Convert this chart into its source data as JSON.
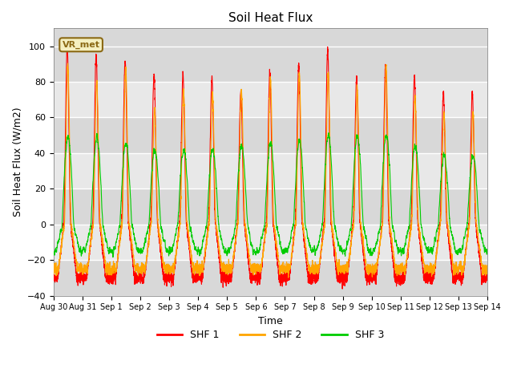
{
  "title": "Soil Heat Flux",
  "xlabel": "Time",
  "ylabel": "Soil Heat Flux (W/m2)",
  "ylim": [
    -40,
    110
  ],
  "yticks": [
    -40,
    -20,
    0,
    20,
    40,
    60,
    80,
    100
  ],
  "colors": {
    "SHF 1": "#ff0000",
    "SHF 2": "#ffa500",
    "SHF 3": "#00cc00"
  },
  "legend_labels": [
    "SHF 1",
    "SHF 2",
    "SHF 3"
  ],
  "annotation_text": "VR_met",
  "annotation_color": "#8b6914",
  "background_color": "#d8d8d8",
  "band_light": "#e8e8e8",
  "band_dark": "#d0d0d0",
  "grid_color": "#ffffff",
  "n_days": 15,
  "points_per_day": 288,
  "tick_labels": [
    "Aug 30",
    "Aug 31",
    "Sep 1",
    "Sep 2",
    "Sep 3",
    "Sep 4",
    "Sep 5",
    "Sep 6",
    "Sep 7",
    "Sep 8",
    "Sep 9",
    "Sep 10",
    "Sep 11",
    "Sep 12",
    "Sep 13",
    "Sep 14"
  ],
  "amp1": [
    100,
    95,
    92,
    84,
    84,
    82,
    75,
    85,
    89,
    98,
    82,
    89,
    83,
    74,
    73
  ],
  "amp2": [
    89,
    80,
    88,
    65,
    75,
    73,
    75,
    82,
    85,
    85,
    76,
    89,
    71,
    62,
    63
  ],
  "amp3": [
    50,
    49,
    46,
    42,
    42,
    42,
    44,
    45,
    47,
    50,
    49,
    50,
    44,
    38,
    39
  ],
  "night1": -30,
  "night2": -25,
  "night3": -15
}
